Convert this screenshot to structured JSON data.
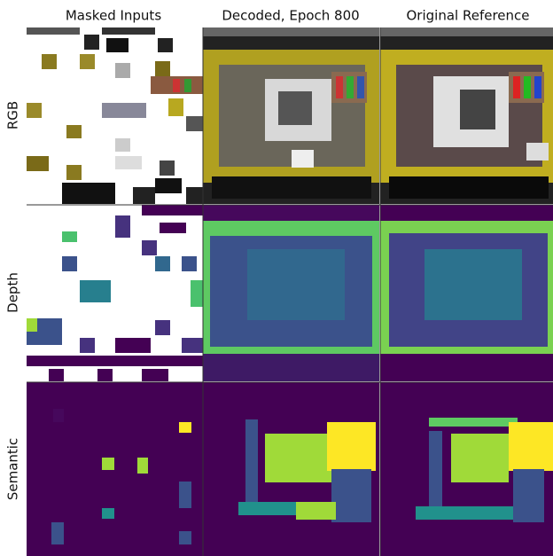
{
  "columns": [
    "Masked Inputs",
    "Decoded, Epoch 800",
    "Original Reference"
  ],
  "rows": [
    "RGB",
    "Depth",
    "Semantic"
  ]
}
